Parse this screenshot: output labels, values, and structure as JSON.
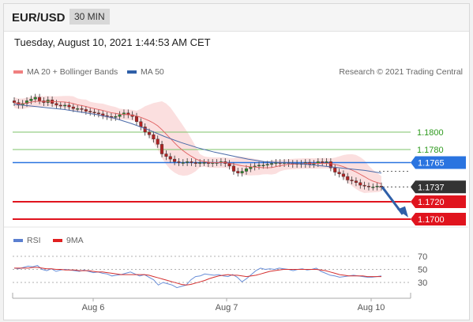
{
  "header": {
    "pair": "EUR/USD",
    "timeframe": "30 MIN"
  },
  "datetime": "Tuesday, August 10, 2021 1:44:53 AM CET",
  "legend": {
    "ma20": {
      "label": "MA 20 + Bollinger Bands",
      "color": "#f08080"
    },
    "ma50": {
      "label": "MA 50",
      "color": "#2f5fa8"
    },
    "credit": "Research © 2021 Trading Central",
    "rsi": {
      "label": "RSI",
      "color": "#5b7fd0"
    },
    "ma9": {
      "label": "9MA",
      "color": "#e02020"
    }
  },
  "levels": [
    {
      "id": "r2",
      "label": "1.1800",
      "value": 1.18,
      "color": "#2e9a1e",
      "kind": "resistance"
    },
    {
      "id": "r1",
      "label": "1.1780",
      "value": 1.178,
      "color": "#2e9a1e",
      "kind": "resistance"
    },
    {
      "id": "pivot",
      "label": "1.1765",
      "value": 1.1765,
      "color": "#2a74e0",
      "kind": "pivot"
    },
    {
      "id": "last",
      "label": "1.1737",
      "value": 1.1737,
      "color": "#333333",
      "kind": "last"
    },
    {
      "id": "s1",
      "label": "1.1720",
      "value": 1.172,
      "color": "#e0141e",
      "kind": "support"
    },
    {
      "id": "s2",
      "label": "1.1700",
      "value": 1.17,
      "color": "#e0141e",
      "kind": "support"
    }
  ],
  "rsi_levels": [
    "70",
    "50",
    "30"
  ],
  "chart_data": {
    "type": "line",
    "x_ticks": [
      "Aug 6",
      "Aug 7",
      "Aug 10"
    ],
    "price_close": [
      1.1834,
      1.1831,
      1.1833,
      1.1836,
      1.1838,
      1.184,
      1.1836,
      1.1834,
      1.1837,
      1.1833,
      1.1831,
      1.183,
      1.1831,
      1.1829,
      1.1827,
      1.1827,
      1.1826,
      1.1824,
      1.1823,
      1.1822,
      1.1821,
      1.1819,
      1.1818,
      1.1817,
      1.1818,
      1.182,
      1.1822,
      1.182,
      1.1818,
      1.1812,
      1.1806,
      1.18,
      1.1797,
      1.1792,
      1.1786,
      1.1775,
      1.1772,
      1.1769,
      1.1766,
      1.1765,
      1.1765,
      1.1766,
      1.1765,
      1.1764,
      1.1765,
      1.1765,
      1.1764,
      1.1765,
      1.1765,
      1.1766,
      1.1764,
      1.1761,
      1.1755,
      1.1753,
      1.1755,
      1.1758,
      1.176,
      1.1761,
      1.1762,
      1.1762,
      1.1763,
      1.1764,
      1.1765,
      1.1764,
      1.1765,
      1.1764,
      1.1763,
      1.1764,
      1.1763,
      1.1765,
      1.1763,
      1.1764,
      1.1766,
      1.1765,
      1.1766,
      1.1759,
      1.1754,
      1.1752,
      1.1749,
      1.1745,
      1.1744,
      1.1742,
      1.1739,
      1.1738,
      1.1737,
      1.1737,
      1.1738,
      1.1737
    ],
    "ma50_points": [
      1.1832,
      1.183,
      1.1828,
      1.1826,
      1.1823,
      1.182,
      1.1816,
      1.181,
      1.1803,
      1.1795,
      1.1788,
      1.1782,
      1.1777,
      1.1773,
      1.1769,
      1.1766,
      1.1765,
      1.1764,
      1.1762,
      1.176,
      1.1758,
      1.1756,
      1.1753
    ],
    "rsi": [
      52,
      51,
      53,
      55,
      54,
      56,
      50,
      48,
      51,
      47,
      49,
      50,
      49,
      48,
      47,
      49,
      47,
      45,
      46,
      44,
      43,
      40,
      41,
      42,
      44,
      46,
      43,
      40,
      42,
      38,
      34,
      26,
      30,
      28,
      26,
      22,
      24,
      26,
      34,
      39,
      40,
      43,
      42,
      41,
      42,
      40,
      39,
      42,
      38,
      31,
      36,
      42,
      48,
      52,
      50,
      51,
      50,
      52,
      51,
      50,
      48,
      50,
      51,
      49,
      50,
      52,
      47,
      44,
      41,
      40,
      38,
      39,
      40,
      41,
      40,
      39,
      38,
      38,
      39,
      40
    ],
    "ma9": [
      52,
      52,
      52,
      52,
      53,
      53,
      52,
      51,
      51,
      50,
      50,
      49,
      49,
      49,
      48,
      48,
      48,
      47,
      46,
      46,
      45,
      44,
      43,
      42,
      42,
      42,
      42,
      42,
      42,
      41,
      39,
      37,
      35,
      33,
      31,
      29,
      27,
      26,
      27,
      29,
      31,
      33,
      36,
      38,
      40,
      41,
      42,
      41,
      41,
      40,
      39,
      40,
      41,
      43,
      45,
      47,
      48,
      49,
      50,
      50,
      50,
      50,
      50,
      50,
      50,
      50,
      49,
      48,
      46,
      44,
      42,
      41,
      40,
      40,
      40,
      40,
      39,
      39,
      39,
      39
    ],
    "y_range_price": [
      1.17,
      1.1845
    ],
    "rsi_range": [
      20,
      80
    ],
    "legend": [
      "MA 20 + Bollinger Bands",
      "MA 50",
      "RSI",
      "9MA"
    ]
  }
}
